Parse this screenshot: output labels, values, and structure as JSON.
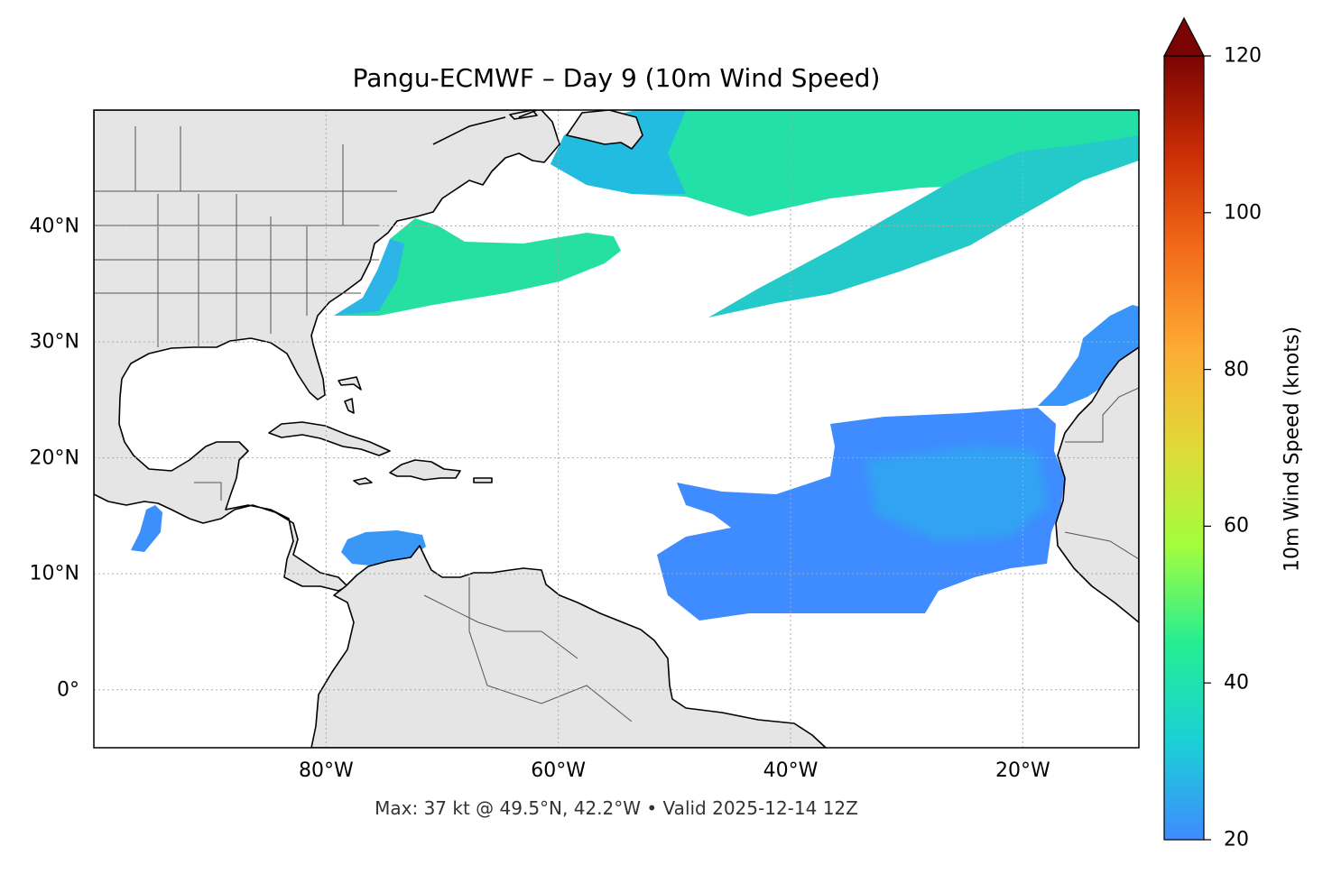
{
  "title": "Pangu-ECMWF – Day 9 (10m Wind Speed)",
  "footer": "Max: 37 kt @ 49.5°N, 42.2°W • Valid 2025-12-14 12Z",
  "map": {
    "extent": {
      "lon_min": -100,
      "lon_max": -10,
      "lat_min": -5,
      "lat_max": 50
    },
    "gridlines": true,
    "land_color": "#e5e5e5",
    "ocean_color": "#ffffff",
    "lat_ticks": [
      {
        "value": 40,
        "label": "40°N"
      },
      {
        "value": 30,
        "label": "30°N"
      },
      {
        "value": 20,
        "label": "20°N"
      },
      {
        "value": 10,
        "label": "10°N"
      },
      {
        "value": 0,
        "label": "0°"
      }
    ],
    "lon_ticks": [
      {
        "value": -80,
        "label": "80°W"
      },
      {
        "value": -60,
        "label": "60°W"
      },
      {
        "value": -40,
        "label": "40°W"
      },
      {
        "value": -20,
        "label": "20°W"
      }
    ]
  },
  "colorbar": {
    "label": "10m Wind Speed (knots)",
    "min": 20,
    "max": 120,
    "extend": "max",
    "ticks": [
      {
        "value": 120,
        "label": "120"
      },
      {
        "value": 100,
        "label": "100"
      },
      {
        "value": 80,
        "label": "80"
      },
      {
        "value": 60,
        "label": "60"
      },
      {
        "value": 40,
        "label": "40"
      },
      {
        "value": 20,
        "label": "20"
      }
    ],
    "colors": [
      "#3f8bff",
      "#1bd0d5",
      "#24ee93",
      "#a3fd3d",
      "#e0d938",
      "#fdac35",
      "#f46d1a",
      "#cb2e05",
      "#7a0403"
    ],
    "extend_color": "#7a0403"
  },
  "wind_regions": [
    {
      "name": "north-atlantic-jet",
      "peak_kt": 37
    },
    {
      "name": "mid-atlantic-band",
      "peak_kt": 33
    },
    {
      "name": "us-east-coast-jet",
      "peak_kt": 35
    },
    {
      "name": "tropical-trade-winds",
      "peak_kt": 26
    },
    {
      "name": "caribbean-jet",
      "peak_kt": 26
    },
    {
      "name": "canary-current-winds",
      "peak_kt": 27
    },
    {
      "name": "gulf-of-tehuantepec-jet",
      "peak_kt": 26
    }
  ]
}
